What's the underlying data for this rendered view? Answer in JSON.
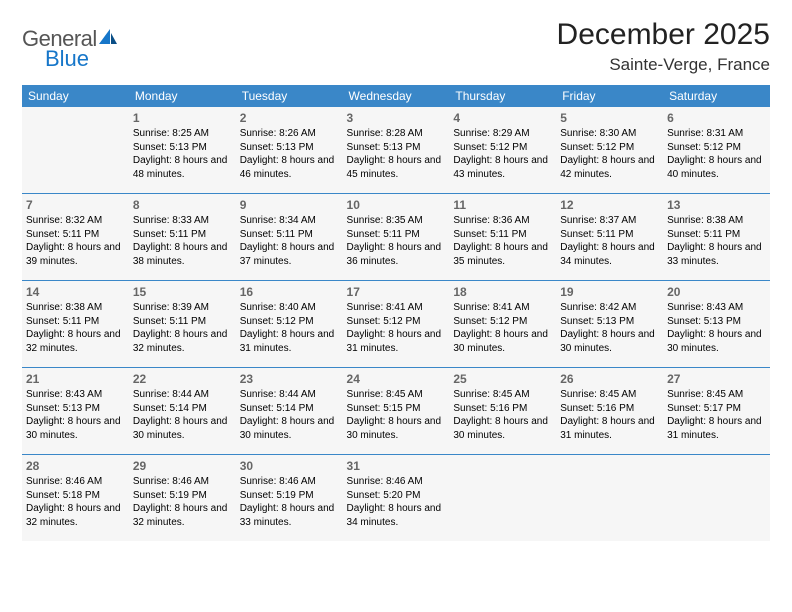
{
  "logo": {
    "word1": "General",
    "word2": "Blue"
  },
  "title": "December 2025",
  "location": "Sainte-Verge, France",
  "accent_color": "#3a87c8",
  "logo_blue": "#1676c9",
  "background_color": "#ffffff",
  "cell_bg": "#f6f6f6",
  "text_color": "#000000",
  "daynum_color": "#666666",
  "weekdays": [
    "Sunday",
    "Monday",
    "Tuesday",
    "Wednesday",
    "Thursday",
    "Friday",
    "Saturday"
  ],
  "start_offset": 1,
  "days": [
    {
      "n": 1,
      "sr": "8:25 AM",
      "ss": "5:13 PM",
      "dl": "8 hours and 48 minutes."
    },
    {
      "n": 2,
      "sr": "8:26 AM",
      "ss": "5:13 PM",
      "dl": "8 hours and 46 minutes."
    },
    {
      "n": 3,
      "sr": "8:28 AM",
      "ss": "5:13 PM",
      "dl": "8 hours and 45 minutes."
    },
    {
      "n": 4,
      "sr": "8:29 AM",
      "ss": "5:12 PM",
      "dl": "8 hours and 43 minutes."
    },
    {
      "n": 5,
      "sr": "8:30 AM",
      "ss": "5:12 PM",
      "dl": "8 hours and 42 minutes."
    },
    {
      "n": 6,
      "sr": "8:31 AM",
      "ss": "5:12 PM",
      "dl": "8 hours and 40 minutes."
    },
    {
      "n": 7,
      "sr": "8:32 AM",
      "ss": "5:11 PM",
      "dl": "8 hours and 39 minutes."
    },
    {
      "n": 8,
      "sr": "8:33 AM",
      "ss": "5:11 PM",
      "dl": "8 hours and 38 minutes."
    },
    {
      "n": 9,
      "sr": "8:34 AM",
      "ss": "5:11 PM",
      "dl": "8 hours and 37 minutes."
    },
    {
      "n": 10,
      "sr": "8:35 AM",
      "ss": "5:11 PM",
      "dl": "8 hours and 36 minutes."
    },
    {
      "n": 11,
      "sr": "8:36 AM",
      "ss": "5:11 PM",
      "dl": "8 hours and 35 minutes."
    },
    {
      "n": 12,
      "sr": "8:37 AM",
      "ss": "5:11 PM",
      "dl": "8 hours and 34 minutes."
    },
    {
      "n": 13,
      "sr": "8:38 AM",
      "ss": "5:11 PM",
      "dl": "8 hours and 33 minutes."
    },
    {
      "n": 14,
      "sr": "8:38 AM",
      "ss": "5:11 PM",
      "dl": "8 hours and 32 minutes."
    },
    {
      "n": 15,
      "sr": "8:39 AM",
      "ss": "5:11 PM",
      "dl": "8 hours and 32 minutes."
    },
    {
      "n": 16,
      "sr": "8:40 AM",
      "ss": "5:12 PM",
      "dl": "8 hours and 31 minutes."
    },
    {
      "n": 17,
      "sr": "8:41 AM",
      "ss": "5:12 PM",
      "dl": "8 hours and 31 minutes."
    },
    {
      "n": 18,
      "sr": "8:41 AM",
      "ss": "5:12 PM",
      "dl": "8 hours and 30 minutes."
    },
    {
      "n": 19,
      "sr": "8:42 AM",
      "ss": "5:13 PM",
      "dl": "8 hours and 30 minutes."
    },
    {
      "n": 20,
      "sr": "8:43 AM",
      "ss": "5:13 PM",
      "dl": "8 hours and 30 minutes."
    },
    {
      "n": 21,
      "sr": "8:43 AM",
      "ss": "5:13 PM",
      "dl": "8 hours and 30 minutes."
    },
    {
      "n": 22,
      "sr": "8:44 AM",
      "ss": "5:14 PM",
      "dl": "8 hours and 30 minutes."
    },
    {
      "n": 23,
      "sr": "8:44 AM",
      "ss": "5:14 PM",
      "dl": "8 hours and 30 minutes."
    },
    {
      "n": 24,
      "sr": "8:45 AM",
      "ss": "5:15 PM",
      "dl": "8 hours and 30 minutes."
    },
    {
      "n": 25,
      "sr": "8:45 AM",
      "ss": "5:16 PM",
      "dl": "8 hours and 30 minutes."
    },
    {
      "n": 26,
      "sr": "8:45 AM",
      "ss": "5:16 PM",
      "dl": "8 hours and 31 minutes."
    },
    {
      "n": 27,
      "sr": "8:45 AM",
      "ss": "5:17 PM",
      "dl": "8 hours and 31 minutes."
    },
    {
      "n": 28,
      "sr": "8:46 AM",
      "ss": "5:18 PM",
      "dl": "8 hours and 32 minutes."
    },
    {
      "n": 29,
      "sr": "8:46 AM",
      "ss": "5:19 PM",
      "dl": "8 hours and 32 minutes."
    },
    {
      "n": 30,
      "sr": "8:46 AM",
      "ss": "5:19 PM",
      "dl": "8 hours and 33 minutes."
    },
    {
      "n": 31,
      "sr": "8:46 AM",
      "ss": "5:20 PM",
      "dl": "8 hours and 34 minutes."
    }
  ],
  "labels": {
    "sunrise": "Sunrise:",
    "sunset": "Sunset:",
    "daylight": "Daylight:"
  }
}
